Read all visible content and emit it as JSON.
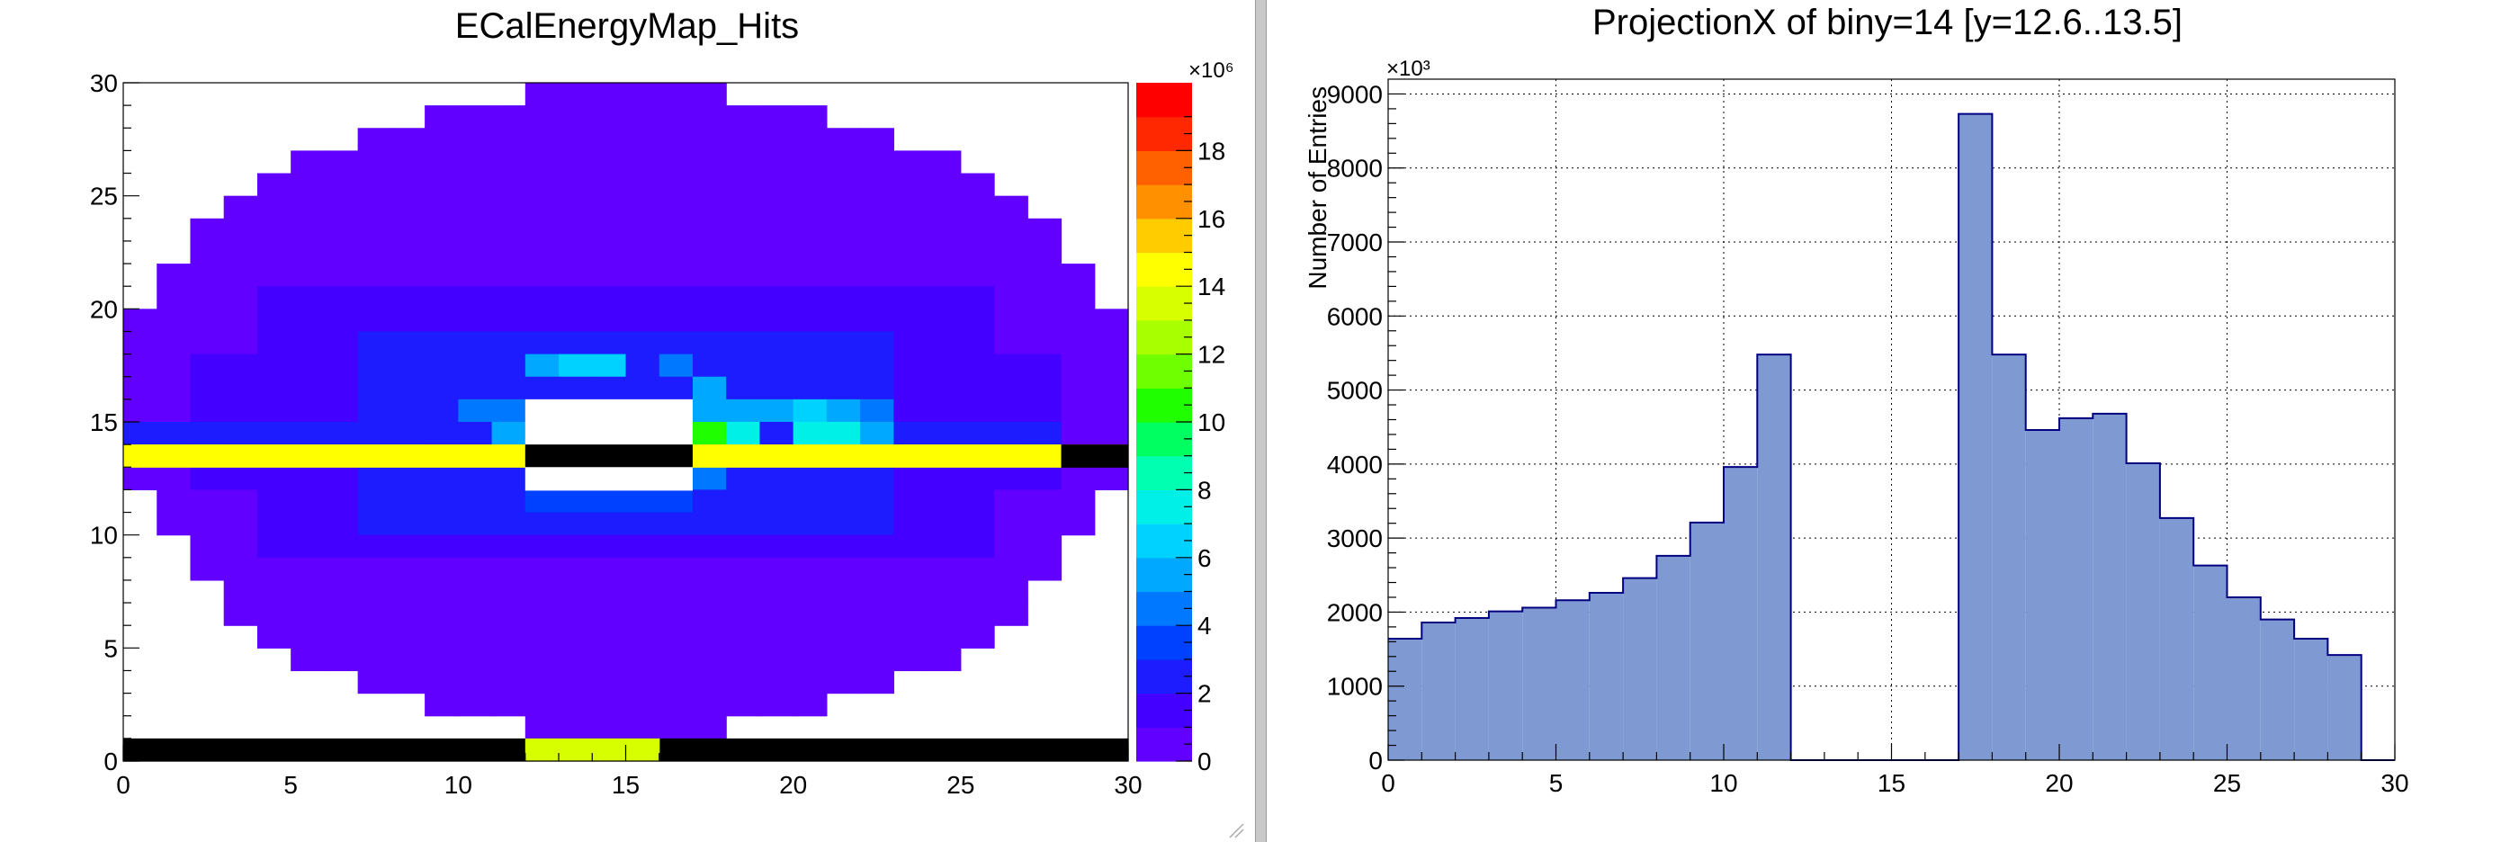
{
  "chart_data": [
    {
      "type": "heatmap",
      "title": "ECalEnergyMap_Hits",
      "xlim": [
        0,
        30
      ],
      "ylim": [
        0,
        30
      ],
      "x_ticks": [
        "0",
        "5",
        "10",
        "15",
        "20",
        "25",
        "30"
      ],
      "y_ticks": [
        "0",
        "5",
        "10",
        "15",
        "20",
        "25",
        "30"
      ],
      "colorbar": {
        "range": [
          0,
          20
        ],
        "multiplier": "×10⁶",
        "ticks": [
          "0",
          "2",
          "4",
          "6",
          "8",
          "10",
          "12",
          "14",
          "16",
          "18"
        ],
        "palette": [
          "#6200ff",
          "#4400ff",
          "#1c1cff",
          "#0040ff",
          "#0078ff",
          "#00a8ff",
          "#00d2ff",
          "#00f0e8",
          "#00ffb0",
          "#00ff60",
          "#20ff00",
          "#70ff00",
          "#a8ff00",
          "#d8ff00",
          "#ffff00",
          "#ffcc00",
          "#ff9000",
          "#ff6000",
          "#ff2800",
          "#ff0000"
        ]
      },
      "cells": [
        {
          "x0": 0,
          "x1": 28,
          "y0": 13,
          "y1": 14,
          "value": 14.5
        },
        {
          "x0": 28,
          "x1": 30,
          "y0": 13,
          "y1": 14,
          "value": 0,
          "note": "black"
        },
        {
          "x0": 0,
          "x1": 30,
          "y0": 0,
          "y1": 1,
          "value": 0,
          "note": "black"
        },
        {
          "x0": 12,
          "x1": 16,
          "y0": 0,
          "y1": 1,
          "value": 13.5
        }
      ]
    },
    {
      "type": "bar",
      "title": "ProjectionX of biny=14 [y=12.6..13.5]",
      "xlabel": "",
      "ylabel": "Number of Entries",
      "ylim": [
        0,
        9200
      ],
      "xlim": [
        0,
        30
      ],
      "y_multiplier": "×10³",
      "x_ticks": [
        "0",
        "5",
        "10",
        "15",
        "20",
        "25",
        "30"
      ],
      "y_ticks": [
        "0",
        "1000",
        "2000",
        "3000",
        "4000",
        "5000",
        "6000",
        "7000",
        "8000",
        "9000"
      ],
      "bin_width": 1,
      "x": [
        0,
        1,
        2,
        3,
        4,
        5,
        6,
        7,
        8,
        9,
        10,
        11,
        12,
        13,
        14,
        15,
        16,
        17,
        18,
        19,
        20,
        21,
        22,
        23,
        24,
        25,
        26,
        27,
        28,
        29
      ],
      "values": [
        1640,
        1860,
        1920,
        2010,
        2060,
        2160,
        2260,
        2460,
        2760,
        3210,
        3960,
        5480,
        0,
        0,
        0,
        0,
        0,
        8730,
        5480,
        4460,
        4620,
        4680,
        4010,
        3270,
        2630,
        2200,
        1900,
        1640,
        1420,
        0
      ]
    }
  ]
}
